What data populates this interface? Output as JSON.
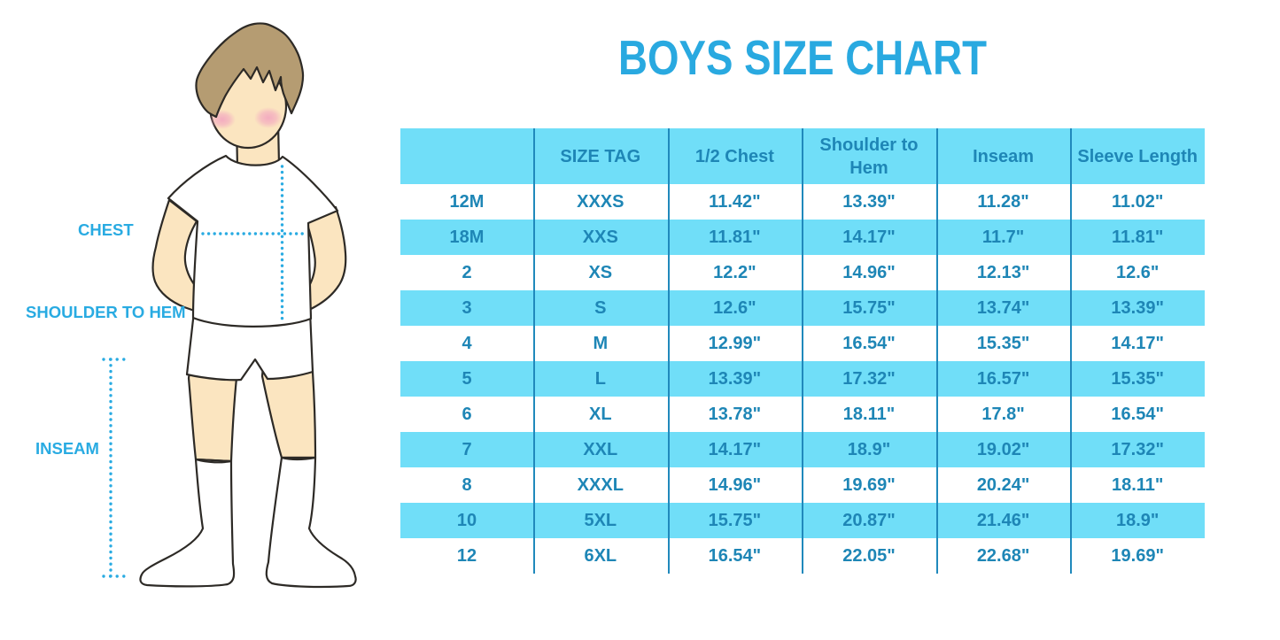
{
  "title": "BOYS SIZE CHART",
  "figure": {
    "description": "outline illustration of a boy in white t-shirt, shorts and socks with dotted measurement guides",
    "labels": {
      "chest": "CHEST",
      "shoulder_to_hem": "SHOULDER TO HEM",
      "inseam": "INSEAM"
    }
  },
  "colors": {
    "accent_blue": "#29abe2",
    "table_text_blue": "#1e86b6",
    "row_fill_cyan": "#70def8",
    "divider_blue": "#2089bc",
    "skin": "#fbe5c0",
    "hair": "#b59c72",
    "outline": "#2d2a26",
    "blush_pink": "#f4a7c3",
    "background": "#ffffff"
  },
  "chart_data": {
    "type": "table",
    "title": "BOYS SIZE CHART",
    "columns": [
      "",
      "SIZE TAG",
      "1/2 Chest",
      "Shoulder to Hem",
      "Inseam",
      "Sleeve Length"
    ],
    "rows": [
      [
        "12M",
        "XXXS",
        "11.42\"",
        "13.39\"",
        "11.28\"",
        "11.02\""
      ],
      [
        "18M",
        "XXS",
        "11.81\"",
        "14.17\"",
        "11.7\"",
        "11.81\""
      ],
      [
        "2",
        "XS",
        "12.2\"",
        "14.96\"",
        "12.13\"",
        "12.6\""
      ],
      [
        "3",
        "S",
        "12.6\"",
        "15.75\"",
        "13.74\"",
        "13.39\""
      ],
      [
        "4",
        "M",
        "12.99\"",
        "16.54\"",
        "15.35\"",
        "14.17\""
      ],
      [
        "5",
        "L",
        "13.39\"",
        "17.32\"",
        "16.57\"",
        "15.35\""
      ],
      [
        "6",
        "XL",
        "13.78\"",
        "18.11\"",
        "17.8\"",
        "16.54\""
      ],
      [
        "7",
        "XXL",
        "14.17\"",
        "18.9\"",
        "19.02\"",
        "17.32\""
      ],
      [
        "8",
        "XXXL",
        "14.96\"",
        "19.69\"",
        "20.24\"",
        "18.11\""
      ],
      [
        "10",
        "5XL",
        "15.75\"",
        "20.87\"",
        "21.46\"",
        "18.9\""
      ],
      [
        "12",
        "6XL",
        "16.54\"",
        "22.05\"",
        "22.68\"",
        "19.69\""
      ]
    ],
    "header_fill": "#70def8",
    "alternating_row_fill": [
      "#ffffff",
      "#70def8"
    ],
    "grid": "vertical column dividers only"
  }
}
